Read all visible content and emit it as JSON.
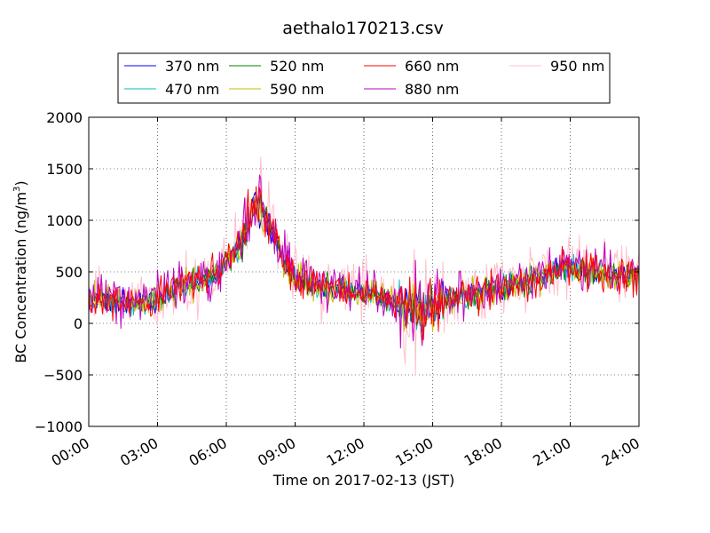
{
  "chart_data": {
    "type": "line",
    "title": "aethalo170213.csv",
    "xlabel": "Time on 2017-02-13 (JST)",
    "ylabel": "BC Concentration (ng/m³)",
    "ylabel_main": "BC Concentration (ng/m",
    "ylabel_sup": "3",
    "ylabel_tail": ")",
    "xlim_hours": [
      0,
      24
    ],
    "ylim": [
      -1000,
      2000
    ],
    "x_ticks": [
      "00:00",
      "03:00",
      "06:00",
      "09:00",
      "12:00",
      "15:00",
      "18:00",
      "21:00",
      "24:00"
    ],
    "y_ticks": [
      "2000",
      "1500",
      "1000",
      "500",
      "0",
      "−500",
      "−1000"
    ],
    "grid": true,
    "legend_position": "top-center",
    "series": [
      {
        "name": "370 nm",
        "color": "#0000ff",
        "noise": 70,
        "x": [
          0,
          0.5,
          1,
          1.5,
          2,
          2.5,
          3,
          3.5,
          4,
          4.5,
          5,
          5.5,
          6,
          6.5,
          7,
          7.2,
          7.5,
          8,
          8.5,
          9,
          9.5,
          10,
          10.5,
          11,
          11.5,
          12,
          12.5,
          13,
          13.5,
          14,
          14.5,
          15,
          15.5,
          16,
          16.5,
          17,
          17.5,
          18,
          18.5,
          19,
          19.5,
          20,
          20.5,
          21,
          21.5,
          22,
          22.5,
          23,
          23.5,
          24
        ],
        "values": [
          230,
          220,
          200,
          210,
          180,
          200,
          230,
          300,
          350,
          380,
          420,
          480,
          600,
          700,
          1000,
          1150,
          1100,
          900,
          600,
          450,
          400,
          350,
          330,
          330,
          300,
          320,
          280,
          220,
          180,
          150,
          120,
          150,
          200,
          250,
          280,
          300,
          320,
          350,
          380,
          400,
          430,
          470,
          520,
          560,
          520,
          500,
          480,
          470,
          450,
          460
        ]
      },
      {
        "name": "470 nm",
        "color": "#00bfbf",
        "noise": 75,
        "x": [
          0,
          0.5,
          1,
          1.5,
          2,
          2.5,
          3,
          3.5,
          4,
          4.5,
          5,
          5.5,
          6,
          6.5,
          7,
          7.2,
          7.5,
          8,
          8.5,
          9,
          9.5,
          10,
          10.5,
          11,
          11.5,
          12,
          12.5,
          13,
          13.5,
          14,
          14.5,
          15,
          15.5,
          16,
          16.5,
          17,
          17.5,
          18,
          18.5,
          19,
          19.5,
          20,
          20.5,
          21,
          21.5,
          22,
          22.5,
          23,
          23.5,
          24
        ],
        "values": [
          240,
          225,
          205,
          215,
          185,
          205,
          235,
          305,
          355,
          385,
          425,
          485,
          610,
          710,
          1010,
          1160,
          1110,
          910,
          610,
          455,
          405,
          355,
          335,
          335,
          305,
          325,
          285,
          225,
          185,
          155,
          125,
          155,
          205,
          255,
          285,
          305,
          325,
          355,
          385,
          405,
          435,
          475,
          525,
          565,
          525,
          505,
          485,
          475,
          455,
          465
        ]
      },
      {
        "name": "520 nm",
        "color": "#008000",
        "noise": 80,
        "x": [
          0,
          0.5,
          1,
          1.5,
          2,
          2.5,
          3,
          3.5,
          4,
          4.5,
          5,
          5.5,
          6,
          6.5,
          7,
          7.2,
          7.5,
          8,
          8.5,
          9,
          9.5,
          10,
          10.5,
          11,
          11.5,
          12,
          12.5,
          13,
          13.5,
          14,
          14.5,
          15,
          15.5,
          16,
          16.5,
          17,
          17.5,
          18,
          18.5,
          19,
          19.5,
          20,
          20.5,
          21,
          21.5,
          22,
          22.5,
          23,
          23.5,
          24
        ],
        "values": [
          235,
          222,
          202,
          212,
          182,
          202,
          232,
          302,
          352,
          382,
          422,
          482,
          605,
          705,
          1005,
          1155,
          1105,
          905,
          605,
          452,
          402,
          352,
          332,
          332,
          302,
          322,
          282,
          222,
          182,
          152,
          122,
          152,
          202,
          252,
          282,
          302,
          322,
          352,
          382,
          402,
          432,
          472,
          522,
          562,
          522,
          502,
          482,
          472,
          452,
          462
        ]
      },
      {
        "name": "590 nm",
        "color": "#bfbf00",
        "noise": 90,
        "x": [
          0,
          0.5,
          1,
          1.5,
          2,
          2.5,
          3,
          3.5,
          4,
          4.5,
          5,
          5.5,
          6,
          6.5,
          7,
          7.2,
          7.5,
          8,
          8.5,
          9,
          9.5,
          10,
          10.5,
          11,
          11.5,
          12,
          12.5,
          13,
          13.5,
          14,
          14.5,
          15,
          15.5,
          16,
          16.5,
          17,
          17.5,
          18,
          18.5,
          19,
          19.5,
          20,
          20.5,
          21,
          21.5,
          22,
          22.5,
          23,
          23.5,
          24
        ],
        "values": [
          238,
          224,
          204,
          214,
          184,
          204,
          234,
          304,
          354,
          384,
          424,
          484,
          608,
          708,
          1008,
          1158,
          1108,
          908,
          608,
          454,
          404,
          354,
          334,
          334,
          304,
          324,
          284,
          224,
          184,
          154,
          124,
          154,
          204,
          254,
          284,
          304,
          324,
          354,
          384,
          404,
          434,
          474,
          524,
          564,
          524,
          504,
          484,
          474,
          454,
          464
        ]
      },
      {
        "name": "660 nm",
        "color": "#ff0000",
        "noise": 115,
        "x": [
          0,
          0.5,
          1,
          1.5,
          2,
          2.5,
          3,
          3.5,
          4,
          4.5,
          5,
          5.5,
          6,
          6.5,
          7,
          7.2,
          7.5,
          8,
          8.5,
          9,
          9.5,
          10,
          10.5,
          11,
          11.5,
          12,
          12.5,
          13,
          13.5,
          14,
          14.5,
          15,
          15.5,
          16,
          16.5,
          17,
          17.5,
          18,
          18.5,
          19,
          19.5,
          20,
          20.5,
          21,
          21.5,
          22,
          22.5,
          23,
          23.5,
          24
        ],
        "values": [
          245,
          230,
          210,
          220,
          190,
          210,
          240,
          310,
          360,
          390,
          430,
          490,
          620,
          720,
          1020,
          1170,
          1120,
          920,
          620,
          460,
          410,
          360,
          340,
          340,
          310,
          330,
          290,
          230,
          190,
          160,
          130,
          160,
          210,
          260,
          290,
          310,
          330,
          360,
          390,
          410,
          440,
          480,
          530,
          570,
          530,
          510,
          490,
          480,
          460,
          470
        ]
      },
      {
        "name": "880 nm",
        "color": "#bf00bf",
        "noise": 140,
        "x": [
          0,
          0.5,
          1,
          1.5,
          2,
          2.5,
          3,
          3.5,
          4,
          4.5,
          5,
          5.5,
          6,
          6.5,
          7,
          7.2,
          7.5,
          8,
          8.5,
          9,
          9.5,
          10,
          10.5,
          11,
          11.5,
          12,
          12.5,
          13,
          13.5,
          14,
          14.5,
          15,
          15.5,
          16,
          16.5,
          17,
          17.5,
          18,
          18.5,
          19,
          19.5,
          20,
          20.5,
          21,
          21.5,
          22,
          22.5,
          23,
          23.5,
          24
        ],
        "values": [
          250,
          235,
          215,
          225,
          195,
          215,
          245,
          315,
          365,
          395,
          435,
          495,
          630,
          730,
          1030,
          1180,
          1130,
          930,
          630,
          465,
          415,
          365,
          345,
          345,
          315,
          335,
          295,
          235,
          195,
          165,
          135,
          165,
          215,
          265,
          295,
          315,
          335,
          365,
          395,
          415,
          445,
          485,
          535,
          575,
          535,
          515,
          495,
          485,
          465,
          475
        ]
      },
      {
        "name": "950 nm",
        "color": "#ffc0cb",
        "noise": 175,
        "x": [
          0,
          0.5,
          1,
          1.5,
          2,
          2.5,
          3,
          3.5,
          4,
          4.5,
          5,
          5.5,
          6,
          6.5,
          7,
          7.2,
          7.5,
          8,
          8.5,
          9,
          9.5,
          10,
          10.5,
          11,
          11.5,
          12,
          12.5,
          13,
          13.5,
          14,
          14.5,
          15,
          15.5,
          16,
          16.5,
          17,
          17.5,
          18,
          18.5,
          19,
          19.5,
          20,
          20.5,
          21,
          21.5,
          22,
          22.5,
          23,
          23.5,
          24
        ],
        "values": [
          255,
          240,
          220,
          230,
          200,
          220,
          250,
          320,
          370,
          400,
          440,
          500,
          640,
          740,
          1040,
          1190,
          1140,
          940,
          640,
          470,
          420,
          370,
          350,
          350,
          320,
          340,
          300,
          240,
          200,
          170,
          140,
          170,
          220,
          270,
          300,
          320,
          340,
          370,
          400,
          420,
          450,
          490,
          540,
          580,
          540,
          520,
          500,
          490,
          470,
          480
        ]
      }
    ]
  }
}
